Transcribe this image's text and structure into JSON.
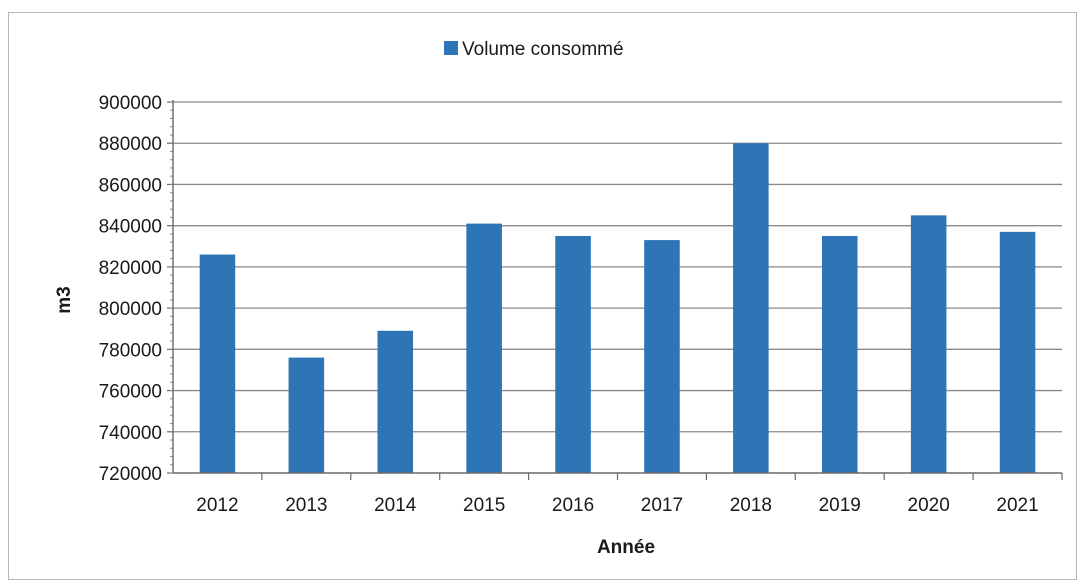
{
  "chart_data": {
    "type": "bar",
    "title": "",
    "xlabel": "Année",
    "ylabel": "m3",
    "categories": [
      "2012",
      "2013",
      "2014",
      "2015",
      "2016",
      "2017",
      "2018",
      "2019",
      "2020",
      "2021"
    ],
    "series": [
      {
        "name": "Volume consommé",
        "color": "#2e75b6",
        "values": [
          826000,
          776000,
          789000,
          841000,
          835000,
          833000,
          880000,
          835000,
          845000,
          837000
        ]
      }
    ],
    "ylim": [
      720000,
      900000
    ],
    "yticks": [
      "720000",
      "740000",
      "760000",
      "780000",
      "800000",
      "820000",
      "840000",
      "860000",
      "880000",
      "900000"
    ],
    "grid": true,
    "legend_position": "top-center"
  }
}
